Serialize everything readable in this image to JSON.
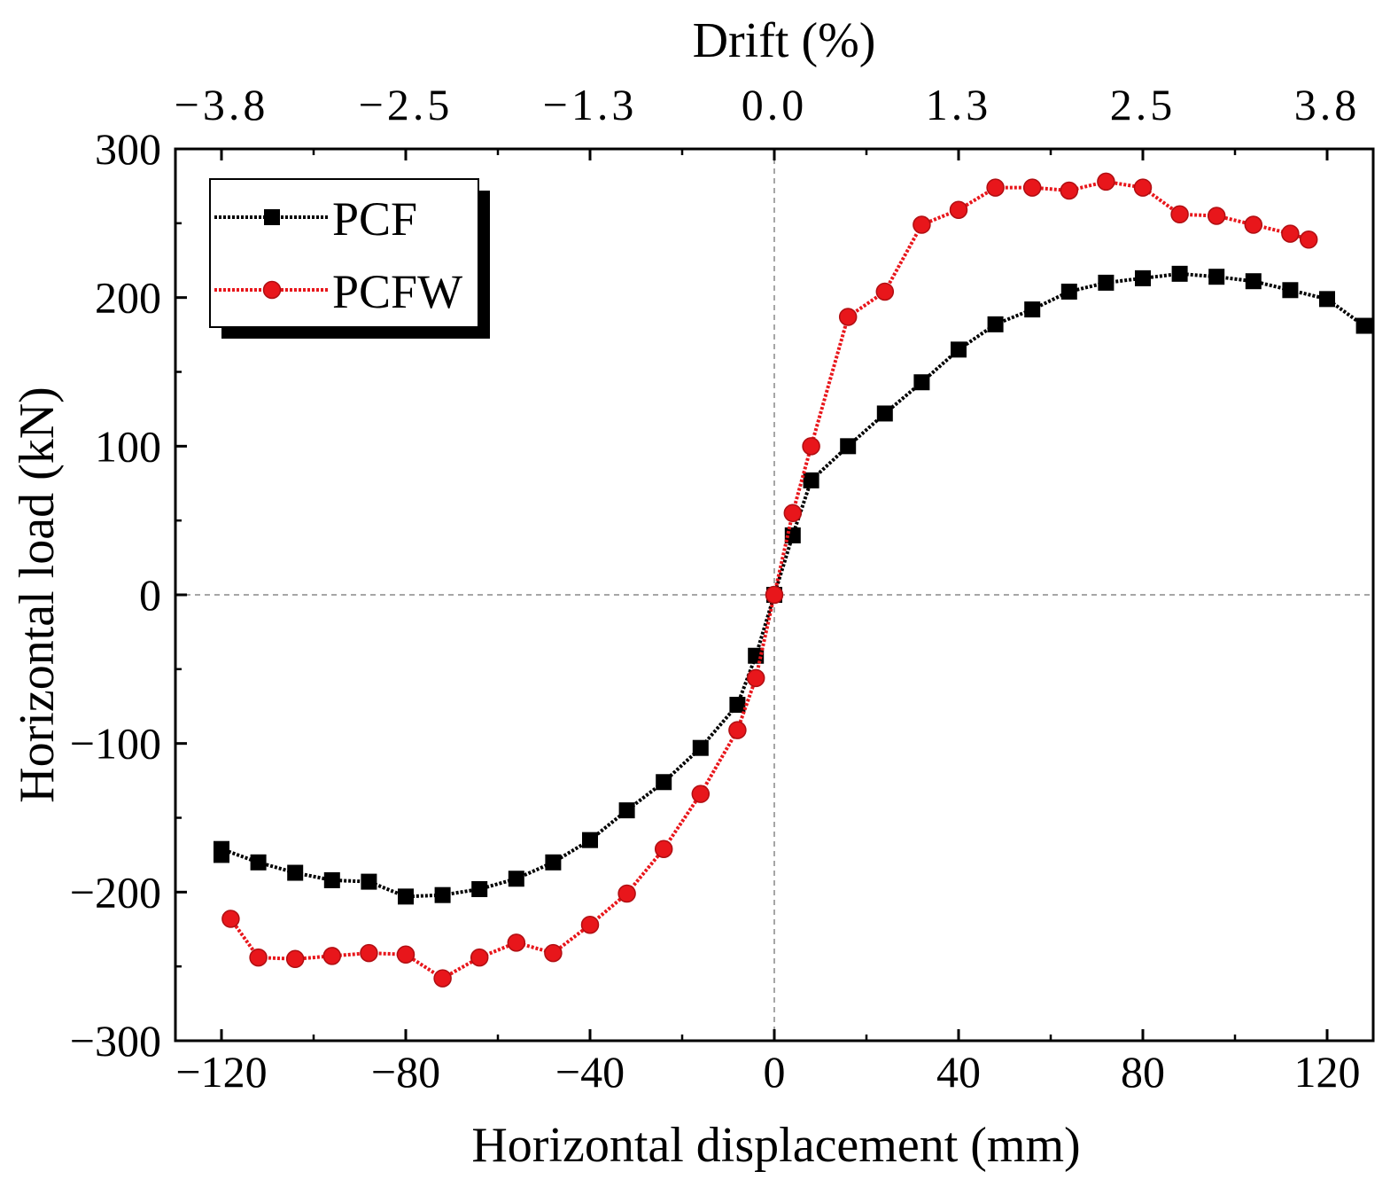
{
  "chart_data": {
    "type": "line",
    "title": "",
    "xlabel": "Horizontal displacement (mm)",
    "ylabel": "Horizontal load (kN)",
    "x2label": "Drift (%)",
    "xlim": [
      -130,
      130
    ],
    "ylim": [
      -300,
      300
    ],
    "xticks": [
      -120,
      -80,
      -40,
      0,
      40,
      80,
      120
    ],
    "xtick_labels": [
      "−120",
      "−80",
      "−40",
      "0",
      "40",
      "80",
      "120"
    ],
    "yticks": [
      -300,
      -200,
      -100,
      0,
      100,
      200,
      300
    ],
    "ytick_labels": [
      "−300",
      "−200",
      "−100",
      "0",
      "100",
      "200",
      "300"
    ],
    "top_ticks": [
      {
        "x": -120,
        "label": "−3.8"
      },
      {
        "x": -80,
        "label": "−2.5"
      },
      {
        "x": -40,
        "label": "−1.3"
      },
      {
        "x": 0,
        "label": "0.0"
      },
      {
        "x": 40,
        "label": "1.3"
      },
      {
        "x": 80,
        "label": "2.5"
      },
      {
        "x": 120,
        "label": "3.8"
      }
    ],
    "legend_position": "top-left",
    "series": [
      {
        "name": "PCF",
        "color": "#000000",
        "marker": "square",
        "x": [
          -120,
          -120,
          -112,
          -104,
          -96,
          -88,
          -80,
          -72,
          -64,
          -56,
          -48,
          -40,
          -32,
          -24,
          -16,
          -8,
          -4,
          0,
          4,
          8,
          16,
          24,
          32,
          40,
          48,
          56,
          64,
          72,
          80,
          88,
          96,
          104,
          112,
          120,
          128
        ],
        "y": [
          -175,
          -171,
          -180,
          -187,
          -192,
          -193,
          -203,
          -202,
          -198,
          -191,
          -180,
          -165,
          -145,
          -126,
          -103,
          -74,
          -41,
          0,
          40,
          77,
          100,
          122,
          143,
          165,
          182,
          192,
          204,
          210,
          213,
          216,
          214,
          211,
          205,
          199,
          181
        ]
      },
      {
        "name": "PCFW",
        "color": "#e8161b",
        "marker": "circle",
        "x": [
          -118,
          -112,
          -104,
          -96,
          -88,
          -80,
          -72,
          -64,
          -56,
          -48,
          -40,
          -32,
          -24,
          -16,
          -8,
          -4,
          0,
          4,
          8,
          16,
          24,
          32,
          40,
          48,
          56,
          64,
          72,
          80,
          88,
          96,
          104,
          112,
          116
        ],
        "y": [
          -218,
          -244,
          -245,
          -243,
          -241,
          -242,
          -258,
          -244,
          -234,
          -241,
          -222,
          -201,
          -171,
          -134,
          -91,
          -56,
          0,
          55,
          100,
          187,
          204,
          249,
          259,
          274,
          274,
          272,
          278,
          274,
          256,
          255,
          249,
          243,
          239
        ]
      }
    ]
  }
}
